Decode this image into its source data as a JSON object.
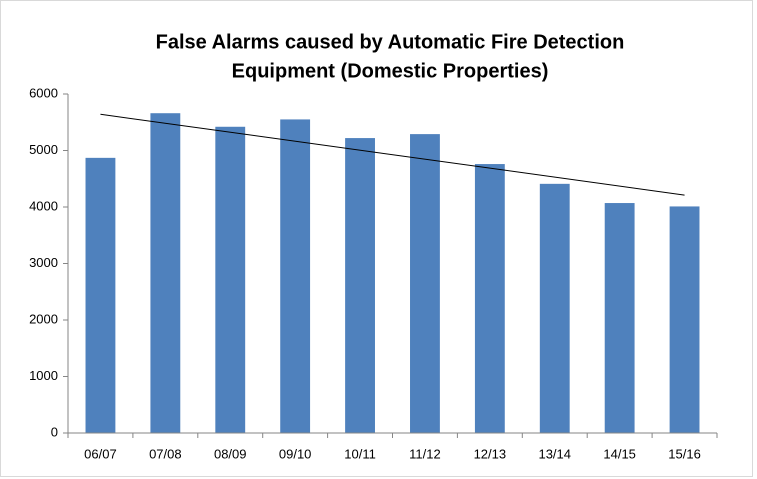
{
  "chart_data": {
    "type": "bar",
    "title": [
      "False Alarms caused by Automatic Fire Detection",
      "Equipment (Domestic Properties)"
    ],
    "categories": [
      "06/07",
      "07/08",
      "08/09",
      "09/10",
      "10/11",
      "11/12",
      "12/13",
      "13/14",
      "14/15",
      "15/16"
    ],
    "values": [
      4870,
      5660,
      5420,
      5550,
      5220,
      5290,
      4760,
      4410,
      4070,
      4010
    ],
    "color": "#4f81bd",
    "trendline": "linear",
    "ylim": [
      0,
      6000
    ],
    "yticks": [
      0,
      1000,
      2000,
      3000,
      4000,
      5000,
      6000
    ],
    "grid": false
  }
}
